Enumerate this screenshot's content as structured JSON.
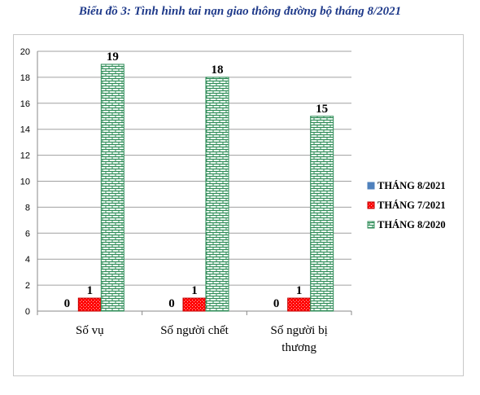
{
  "title": "Biểu đồ 3: Tình hình tai nạn giao thông đường bộ tháng 8/2021",
  "chart_data": {
    "type": "bar",
    "categories": [
      "Số vụ",
      "Số người chết",
      "Số người bị thương"
    ],
    "series": [
      {
        "name": "THÁNG 8/2021",
        "values": [
          0,
          0,
          0
        ],
        "color": "#4f81bd",
        "pattern": "solid"
      },
      {
        "name": "THÁNG 7/2021",
        "values": [
          1,
          1,
          1
        ],
        "color": "#ff0000",
        "pattern": "dots"
      },
      {
        "name": "THÁNG 8/2020",
        "values": [
          19,
          18,
          15
        ],
        "color": "#2e8b57",
        "pattern": "brick"
      }
    ],
    "ylim": [
      0,
      20
    ],
    "yticks": [
      0,
      2,
      4,
      6,
      8,
      10,
      12,
      14,
      16,
      18,
      20
    ],
    "grid": true,
    "legend": "right",
    "data_labels": true
  }
}
